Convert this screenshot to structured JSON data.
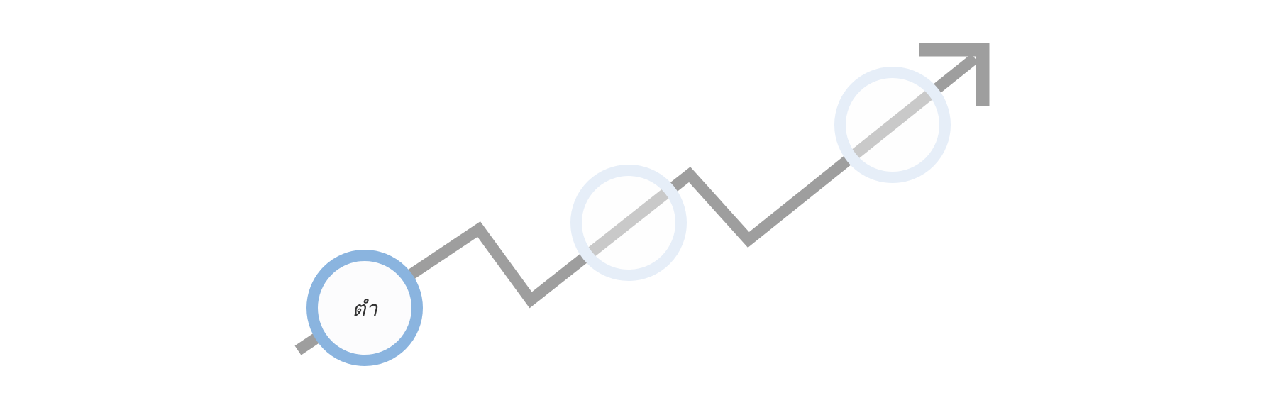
{
  "colors": {
    "background": "#ffffff",
    "line": "#9e9e9e",
    "active_ring": "#8ab4df",
    "inactive_ring": "#e6eef8",
    "node_fill": "#fcfcfd",
    "label": "#333333"
  },
  "milestones": [
    {
      "label": "ตำ",
      "state": "active"
    },
    {
      "label": "",
      "state": "inactive"
    },
    {
      "label": "",
      "state": "inactive"
    }
  ],
  "icons": {
    "trend": "trend-up-arrow-icon"
  }
}
